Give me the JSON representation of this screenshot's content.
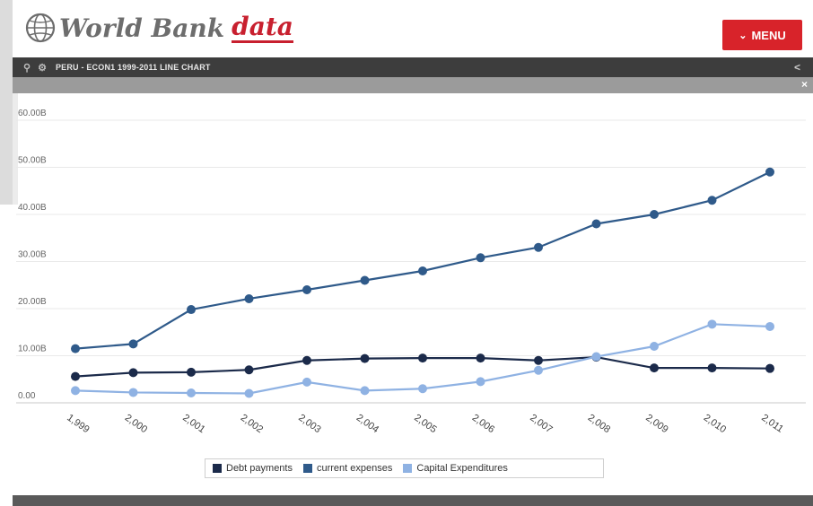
{
  "header": {
    "logo_word1": "World Bank",
    "logo_word2": "data",
    "menu_label": "MENU"
  },
  "titlebar": {
    "title": "PERU - ECON1 1999-2011 LINE CHART"
  },
  "colors": {
    "brand_red": "#d8232a",
    "debt": "#1b2a4a",
    "current": "#2f5a8a",
    "capital": "#8fb2e3"
  },
  "chart_data": {
    "type": "line",
    "x": [
      "1,999",
      "2,000",
      "2,001",
      "2,002",
      "2,003",
      "2,004",
      "2,005",
      "2,006",
      "2,007",
      "2,008",
      "2,009",
      "2,010",
      "2,011"
    ],
    "y_ticks": [
      "0.00",
      "10.00B",
      "20.00B",
      "30.00B",
      "40.00B",
      "50.00B",
      "60.00B"
    ],
    "ylim": [
      0,
      60
    ],
    "grid": true,
    "legend_position": "bottom",
    "series": [
      {
        "name": "Debt payments",
        "values": [
          5.6,
          6.4,
          6.5,
          7.0,
          9.0,
          9.4,
          9.5,
          9.5,
          9.0,
          9.7,
          7.4,
          7.4,
          7.3
        ]
      },
      {
        "name": "current expenses",
        "values": [
          11.5,
          12.5,
          19.8,
          22.1,
          24.0,
          26.0,
          28.0,
          30.8,
          33.0,
          38.0,
          40.0,
          43.0,
          49.0
        ]
      },
      {
        "name": "Capital Expenditures",
        "values": [
          2.6,
          2.2,
          2.1,
          2.0,
          4.4,
          2.6,
          3.0,
          4.5,
          6.9,
          9.8,
          12.0,
          16.7,
          16.2
        ]
      }
    ]
  }
}
